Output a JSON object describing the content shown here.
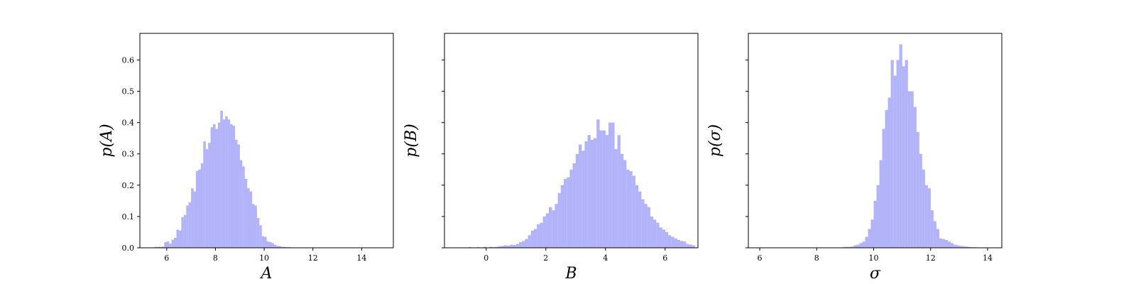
{
  "figure": {
    "bar_color": "#b3b3fa",
    "axis_color": "#000000"
  },
  "chart_data": [
    {
      "type": "bar",
      "xlabel": "A",
      "ylabel": "p(A)",
      "xlim": [
        4.9,
        15.3
      ],
      "ylim": [
        0,
        0.685
      ],
      "xticks": [
        6,
        8,
        10,
        12,
        14
      ],
      "yticks": [
        0.0,
        0.1,
        0.2,
        0.3,
        0.4,
        0.5,
        0.6
      ],
      "ytick_labels_shown": true,
      "bin_width": 0.1,
      "bins": [
        [
          5.5,
          0.003
        ],
        [
          5.6,
          0.003
        ],
        [
          5.7,
          0.003
        ],
        [
          5.8,
          0.004
        ],
        [
          5.9,
          0.018
        ],
        [
          6.0,
          0.02
        ],
        [
          6.1,
          0.013
        ],
        [
          6.2,
          0.026
        ],
        [
          6.3,
          0.032
        ],
        [
          6.4,
          0.058
        ],
        [
          6.5,
          0.055
        ],
        [
          6.6,
          0.098
        ],
        [
          6.7,
          0.105
        ],
        [
          6.8,
          0.135
        ],
        [
          6.9,
          0.145
        ],
        [
          7.0,
          0.19
        ],
        [
          7.1,
          0.18
        ],
        [
          7.2,
          0.245
        ],
        [
          7.3,
          0.25
        ],
        [
          7.4,
          0.27
        ],
        [
          7.5,
          0.34
        ],
        [
          7.6,
          0.315
        ],
        [
          7.7,
          0.335
        ],
        [
          7.8,
          0.385
        ],
        [
          7.9,
          0.395
        ],
        [
          8.0,
          0.38
        ],
        [
          8.1,
          0.4
        ],
        [
          8.2,
          0.438
        ],
        [
          8.3,
          0.41
        ],
        [
          8.4,
          0.42
        ],
        [
          8.5,
          0.41
        ],
        [
          8.6,
          0.395
        ],
        [
          8.7,
          0.39
        ],
        [
          8.8,
          0.345
        ],
        [
          8.9,
          0.33
        ],
        [
          9.0,
          0.28
        ],
        [
          9.1,
          0.26
        ],
        [
          9.2,
          0.22
        ],
        [
          9.3,
          0.19
        ],
        [
          9.4,
          0.18
        ],
        [
          9.5,
          0.14
        ],
        [
          9.6,
          0.135
        ],
        [
          9.7,
          0.095
        ],
        [
          9.8,
          0.072
        ],
        [
          9.9,
          0.037
        ],
        [
          10.0,
          0.035
        ],
        [
          10.1,
          0.02
        ],
        [
          10.2,
          0.018
        ],
        [
          10.3,
          0.015
        ],
        [
          10.4,
          0.009
        ],
        [
          10.5,
          0.006
        ],
        [
          10.6,
          0.005
        ],
        [
          10.7,
          0.003
        ],
        [
          10.8,
          0.003
        ],
        [
          10.9,
          0.002
        ],
        [
          11.0,
          0.002
        ],
        [
          11.1,
          0.001
        ]
      ]
    },
    {
      "type": "bar",
      "xlabel": "B",
      "ylabel": "p(B)",
      "xlim": [
        -1.4,
        7.1
      ],
      "ylim": [
        0,
        0.685
      ],
      "xticks": [
        0,
        2,
        4,
        6
      ],
      "yticks": [
        0.0,
        0.1,
        0.2,
        0.3,
        0.4,
        0.5,
        0.6
      ],
      "ytick_labels_shown": false,
      "bin_width": 0.1,
      "bins": [
        [
          -1.0,
          0.001
        ],
        [
          -0.8,
          0.001
        ],
        [
          -0.6,
          0.002
        ],
        [
          -0.3,
          0.002
        ],
        [
          -0.1,
          0.003
        ],
        [
          0.1,
          0.003
        ],
        [
          0.2,
          0.002
        ],
        [
          0.3,
          0.003
        ],
        [
          0.4,
          0.005
        ],
        [
          0.5,
          0.006
        ],
        [
          0.6,
          0.008
        ],
        [
          0.7,
          0.007
        ],
        [
          0.8,
          0.01
        ],
        [
          0.9,
          0.009
        ],
        [
          1.0,
          0.012
        ],
        [
          1.1,
          0.018
        ],
        [
          1.2,
          0.022
        ],
        [
          1.3,
          0.028
        ],
        [
          1.4,
          0.04
        ],
        [
          1.5,
          0.055
        ],
        [
          1.6,
          0.06
        ],
        [
          1.7,
          0.075
        ],
        [
          1.8,
          0.08
        ],
        [
          1.9,
          0.1
        ],
        [
          2.0,
          0.11
        ],
        [
          2.1,
          0.13
        ],
        [
          2.2,
          0.12
        ],
        [
          2.3,
          0.14
        ],
        [
          2.4,
          0.175
        ],
        [
          2.5,
          0.2
        ],
        [
          2.6,
          0.22
        ],
        [
          2.7,
          0.225
        ],
        [
          2.8,
          0.25
        ],
        [
          2.9,
          0.27
        ],
        [
          3.0,
          0.3
        ],
        [
          3.1,
          0.33
        ],
        [
          3.2,
          0.31
        ],
        [
          3.3,
          0.34
        ],
        [
          3.4,
          0.36
        ],
        [
          3.5,
          0.345
        ],
        [
          3.6,
          0.35
        ],
        [
          3.7,
          0.41
        ],
        [
          3.8,
          0.375
        ],
        [
          3.9,
          0.375
        ],
        [
          4.0,
          0.36
        ],
        [
          4.1,
          0.4
        ],
        [
          4.2,
          0.4
        ],
        [
          4.3,
          0.315
        ],
        [
          4.4,
          0.36
        ],
        [
          4.5,
          0.3
        ],
        [
          4.6,
          0.28
        ],
        [
          4.7,
          0.25
        ],
        [
          4.8,
          0.245
        ],
        [
          4.9,
          0.23
        ],
        [
          5.0,
          0.2
        ],
        [
          5.1,
          0.18
        ],
        [
          5.2,
          0.155
        ],
        [
          5.3,
          0.14
        ],
        [
          5.4,
          0.13
        ],
        [
          5.5,
          0.1
        ],
        [
          5.6,
          0.09
        ],
        [
          5.7,
          0.08
        ],
        [
          5.8,
          0.065
        ],
        [
          5.9,
          0.058
        ],
        [
          6.0,
          0.05
        ],
        [
          6.1,
          0.04
        ],
        [
          6.2,
          0.035
        ],
        [
          6.3,
          0.03
        ],
        [
          6.4,
          0.025
        ],
        [
          6.5,
          0.022
        ],
        [
          6.6,
          0.02
        ],
        [
          6.7,
          0.012
        ],
        [
          6.8,
          0.01
        ],
        [
          6.9,
          0.008
        ]
      ]
    },
    {
      "type": "bar",
      "xlabel": "σ",
      "ylabel": "p(σ)",
      "xlim": [
        5.6,
        14.5
      ],
      "ylim": [
        0,
        0.685
      ],
      "xticks": [
        6,
        8,
        10,
        12,
        14
      ],
      "yticks": [
        0.0,
        0.1,
        0.2,
        0.3,
        0.4,
        0.5,
        0.6
      ],
      "ytick_labels_shown": false,
      "bin_width": 0.1,
      "bins": [
        [
          8.7,
          0.001
        ],
        [
          8.9,
          0.002
        ],
        [
          9.0,
          0.003
        ],
        [
          9.1,
          0.003
        ],
        [
          9.2,
          0.004
        ],
        [
          9.3,
          0.008
        ],
        [
          9.4,
          0.01
        ],
        [
          9.5,
          0.015
        ],
        [
          9.6,
          0.02
        ],
        [
          9.7,
          0.035
        ],
        [
          9.8,
          0.06
        ],
        [
          9.9,
          0.09
        ],
        [
          10.0,
          0.15
        ],
        [
          10.1,
          0.2
        ],
        [
          10.2,
          0.28
        ],
        [
          10.3,
          0.38
        ],
        [
          10.4,
          0.44
        ],
        [
          10.5,
          0.48
        ],
        [
          10.6,
          0.6
        ],
        [
          10.7,
          0.55
        ],
        [
          10.8,
          0.6
        ],
        [
          10.9,
          0.65
        ],
        [
          11.0,
          0.58
        ],
        [
          11.1,
          0.6
        ],
        [
          11.2,
          0.5
        ],
        [
          11.3,
          0.5
        ],
        [
          11.4,
          0.45
        ],
        [
          11.5,
          0.37
        ],
        [
          11.6,
          0.3
        ],
        [
          11.7,
          0.25
        ],
        [
          11.8,
          0.2
        ],
        [
          11.9,
          0.19
        ],
        [
          12.0,
          0.12
        ],
        [
          12.1,
          0.085
        ],
        [
          12.2,
          0.06
        ],
        [
          12.3,
          0.03
        ],
        [
          12.4,
          0.028
        ],
        [
          12.5,
          0.025
        ],
        [
          12.6,
          0.02
        ],
        [
          12.7,
          0.015
        ],
        [
          12.8,
          0.01
        ],
        [
          12.9,
          0.008
        ],
        [
          13.0,
          0.006
        ],
        [
          13.1,
          0.005
        ],
        [
          13.2,
          0.004
        ],
        [
          13.3,
          0.003
        ],
        [
          13.4,
          0.002
        ],
        [
          13.5,
          0.002
        ],
        [
          13.6,
          0.001
        ],
        [
          13.8,
          0.001
        ]
      ]
    }
  ]
}
